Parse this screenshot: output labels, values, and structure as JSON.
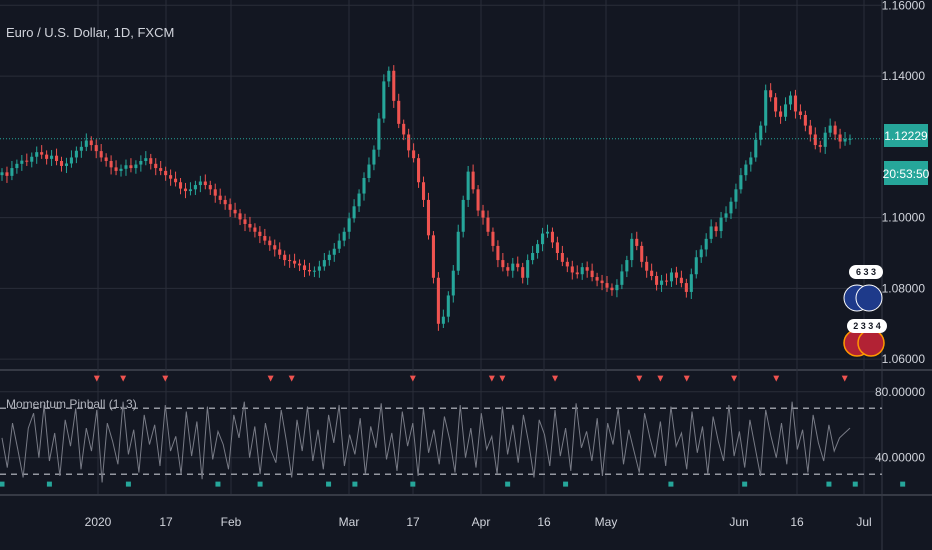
{
  "symbol_title": "Euro / U.S. Dollar, 1D, FXCM",
  "indicator_title": "Momentum Pinball (1, 3)",
  "current_price_label": "1.12229",
  "countdown_label": "20:53:50",
  "badges": [
    {
      "label": "6 3 3",
      "flag": "eu"
    },
    {
      "label": "2 3 3 4",
      "flag": "us"
    }
  ],
  "colors": {
    "background": "#131722",
    "grid": "#2a2e39",
    "up": "#26a69a",
    "down": "#ef5350",
    "price_line": "#26a69a",
    "indicator_line": "#787b86",
    "band_line": "#9598a1",
    "marker_up": "#26a69a",
    "marker_down": "#ef5350"
  },
  "chart_data": [
    {
      "type": "candlestick",
      "title": "Euro / U.S. Dollar, 1D, FXCM",
      "x_tick_labels": [
        "2020",
        "17",
        "Feb",
        "Mar",
        "17",
        "Apr",
        "16",
        "May",
        "Jun",
        "16",
        "Jul"
      ],
      "y_tick_labels": [
        "1.06000",
        "1.08000",
        "1.10000",
        "1.12229",
        "1.14000",
        "1.16000"
      ],
      "ylim": [
        1.0575,
        1.1615
      ],
      "current_price": 1.12229,
      "close": [
        1.1128,
        1.1118,
        1.114,
        1.1152,
        1.1161,
        1.1158,
        1.1172,
        1.1185,
        1.1178,
        1.1166,
        1.1175,
        1.116,
        1.1146,
        1.1153,
        1.117,
        1.1189,
        1.12,
        1.1218,
        1.1205,
        1.1188,
        1.117,
        1.116,
        1.1142,
        1.1132,
        1.1138,
        1.1148,
        1.114,
        1.115,
        1.116,
        1.1168,
        1.1152,
        1.114,
        1.1132,
        1.112,
        1.111,
        1.11,
        1.1082,
        1.1075,
        1.108,
        1.1092,
        1.1102,
        1.1092,
        1.108,
        1.1062,
        1.105,
        1.1038,
        1.1022,
        1.1012,
        1.0995,
        1.0982,
        1.0972,
        1.096,
        1.0948,
        1.0935,
        1.0922,
        1.091,
        1.0895,
        1.088,
        1.0878,
        1.087,
        1.0865,
        1.0852,
        1.0848,
        1.085,
        1.0862,
        1.088,
        1.0895,
        1.0912,
        1.0935,
        1.096,
        1.0998,
        1.1032,
        1.1068,
        1.1112,
        1.115,
        1.1192,
        1.128,
        1.1385,
        1.1415,
        1.133,
        1.1265,
        1.1235,
        1.119,
        1.1168,
        1.11,
        1.105,
        1.095,
        1.083,
        1.07,
        1.072,
        1.078,
        1.085,
        1.096,
        1.105,
        1.113,
        1.108,
        1.102,
        1.1,
        1.096,
        1.092,
        1.088,
        1.086,
        1.085,
        1.087,
        1.086,
        1.083,
        1.088,
        1.09,
        1.0925,
        1.0955,
        1.096,
        1.093,
        1.09,
        1.0875,
        1.0862,
        1.0845,
        1.084,
        1.086,
        1.085,
        1.0832,
        1.0822,
        1.0815,
        1.0802,
        1.0795,
        1.081,
        1.0848,
        1.088,
        1.094,
        1.092,
        1.0875,
        1.085,
        1.0835,
        1.081,
        1.0822,
        1.082,
        1.0845,
        1.083,
        1.0815,
        1.079,
        1.084,
        1.0888,
        1.091,
        1.094,
        1.0975,
        1.0962,
        1.1,
        1.1012,
        1.1045,
        1.108,
        1.112,
        1.115,
        1.117,
        1.122,
        1.126,
        1.136,
        1.134,
        1.13,
        1.1285,
        1.132,
        1.1345,
        1.13,
        1.129,
        1.126,
        1.1235,
        1.1205,
        1.12,
        1.124,
        1.126,
        1.1235,
        1.1215,
        1.1222,
        1.12229
      ]
    },
    {
      "type": "line",
      "title": "Momentum Pinball (1, 3)",
      "y_tick_labels": [
        "40.00000",
        "80.00000"
      ],
      "ylim": [
        18,
        92
      ],
      "bands": [
        30,
        70
      ],
      "values": [
        52,
        34,
        61,
        45,
        28,
        58,
        67,
        40,
        72,
        38,
        55,
        29,
        63,
        47,
        70,
        33,
        58,
        44,
        69,
        25,
        61,
        50,
        36,
        74,
        42,
        57,
        31,
        66,
        48,
        60,
        35,
        72,
        44,
        53,
        30,
        68,
        41,
        62,
        27,
        71,
        39,
        56,
        48,
        33,
        66,
        52,
        74,
        40,
        59,
        30,
        61,
        45,
        37,
        69,
        50,
        28,
        63,
        44,
        71,
        38,
        57,
        33,
        66,
        49,
        72,
        35,
        54,
        42,
        64,
        30,
        59,
        46,
        73,
        39,
        55,
        32,
        68,
        47,
        61,
        29,
        70,
        43,
        57,
        36,
        65,
        51,
        31,
        72,
        40,
        58,
        34,
        67,
        45,
        53,
        30,
        71,
        42,
        60,
        37,
        66,
        49,
        28,
        63,
        54,
        35,
        69,
        41,
        58,
        32,
        73,
        46,
        56,
        38,
        64,
        29,
        61,
        48,
        70,
        36,
        57,
        44,
        31,
        67,
        52,
        40,
        62,
        35,
        71,
        47,
        55,
        33,
        68,
        43,
        59,
        30,
        65,
        50,
        38,
        72,
        41,
        56,
        34,
        63,
        46,
        29,
        69,
        53,
        40,
        61,
        36,
        74,
        45,
        57,
        31,
        66,
        49,
        38,
        60,
        44,
        52,
        55,
        58
      ],
      "markers_top": [
        18,
        23,
        31,
        51,
        55,
        78,
        93,
        95,
        105,
        121,
        125,
        130,
        139,
        147,
        160
      ],
      "markers_bottom": [
        0,
        9,
        24,
        41,
        49,
        62,
        67,
        78,
        96,
        107,
        127,
        141,
        157,
        162,
        171
      ]
    }
  ]
}
